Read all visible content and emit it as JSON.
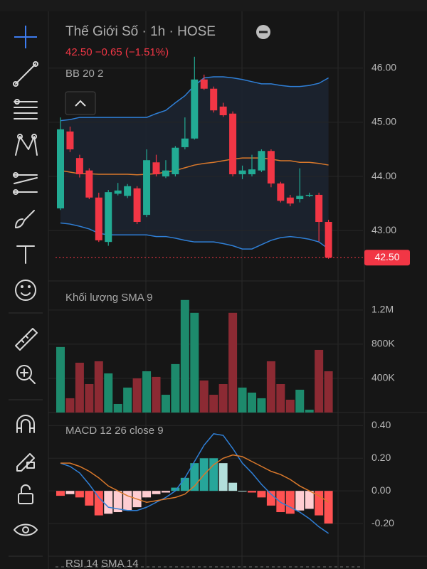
{
  "header": {
    "title": "Thế Giới Số · 1h · HOSE",
    "quote": "42.50  −0.65 (−1.51%)"
  },
  "rsi": {
    "title": "RSI 14 SMA 14"
  },
  "chart_data": [
    {
      "type": "candlestick",
      "title": "BB 20 2",
      "open": [
        43.41,
        44.83,
        44.34,
        44.11,
        43.61,
        42.79,
        43.68,
        43.64,
        43.78,
        43.29,
        44.26,
        44.0,
        44.04,
        44.54,
        44.7,
        45.79,
        45.62,
        45.29,
        45.16,
        44.04,
        44.04,
        44.11,
        44.47,
        43.87,
        43.61,
        43.58,
        43.64,
        43.66,
        43.16
      ],
      "high": [
        45.09,
        44.92,
        44.4,
        44.15,
        43.7,
        43.75,
        43.88,
        43.86,
        43.82,
        44.5,
        44.4,
        44.3,
        44.56,
        45.09,
        46.21,
        45.88,
        45.66,
        45.36,
        45.2,
        44.2,
        44.4,
        44.5,
        44.5,
        43.9,
        43.66,
        44.15,
        43.7,
        43.7,
        43.2
      ],
      "low": [
        43.38,
        44.45,
        43.98,
        43.58,
        42.79,
        42.72,
        43.65,
        43.6,
        43.12,
        43.25,
        44.0,
        43.97,
        44.0,
        44.5,
        44.68,
        45.6,
        45.18,
        45.1,
        44.0,
        43.95,
        44.0,
        44.08,
        43.8,
        43.52,
        43.45,
        43.52,
        43.62,
        42.8,
        42.48
      ],
      "close": [
        44.87,
        44.5,
        44.04,
        43.61,
        42.82,
        43.71,
        43.74,
        43.82,
        43.16,
        44.3,
        44.04,
        44.11,
        44.53,
        44.7,
        45.79,
        45.62,
        45.22,
        45.13,
        44.04,
        44.11,
        44.13,
        44.47,
        43.87,
        43.55,
        43.5,
        43.64,
        43.66,
        43.16,
        42.5
      ],
      "up_color": "#22ab94",
      "down_color": "#f23645",
      "bands": {
        "upper": [
          45.03,
          45.05,
          45.09,
          45.09,
          45.09,
          45.09,
          45.09,
          45.09,
          45.09,
          45.09,
          45.16,
          45.22,
          45.36,
          45.49,
          45.68,
          45.82,
          45.84,
          45.84,
          45.82,
          45.79,
          45.75,
          45.71,
          45.71,
          45.68,
          45.66,
          45.66,
          45.68,
          45.72,
          45.82
        ],
        "basis": [
          44.11,
          44.08,
          44.05,
          44.05,
          44.04,
          44.04,
          44.04,
          44.04,
          44.03,
          44.04,
          44.05,
          44.08,
          44.11,
          44.16,
          44.21,
          44.24,
          44.26,
          44.29,
          44.32,
          44.34,
          44.34,
          44.34,
          44.32,
          44.29,
          44.29,
          44.26,
          44.26,
          44.24,
          44.21
        ],
        "lower": [
          43.14,
          43.12,
          43.08,
          43.03,
          42.95,
          42.92,
          42.92,
          42.92,
          42.92,
          42.92,
          42.89,
          42.89,
          42.86,
          42.82,
          42.79,
          42.79,
          42.79,
          42.76,
          42.72,
          42.66,
          42.66,
          42.74,
          42.82,
          42.87,
          42.89,
          42.87,
          42.84,
          42.79,
          42.66
        ],
        "color": "#2f7fd6",
        "basis_color": "#d9782b"
      },
      "last_price": {
        "value": 42.5,
        "label": "42.50"
      },
      "ylim": [
        42.07,
        46.47
      ],
      "yticks": [
        {
          "value": 43,
          "label": "43.00"
        },
        {
          "value": 44,
          "label": "44.00"
        },
        {
          "value": 45,
          "label": "45.00"
        },
        {
          "value": 46,
          "label": "46.00"
        }
      ]
    },
    {
      "type": "bar",
      "title": "Khối lượng SMA 9",
      "values": [
        767000,
        167000,
        583000,
        333000,
        600000,
        458000,
        100000,
        292000,
        400000,
        483000,
        417000,
        208000,
        567000,
        1317000,
        1167000,
        375000,
        208000,
        333000,
        1167000,
        292000,
        233000,
        167000,
        600000,
        333000,
        150000,
        267000,
        33000,
        733000,
        483000
      ],
      "up_color": "#1d8a6c",
      "down_color": "#8c2a33",
      "ylim": [
        0,
        1540000
      ],
      "yticks": [
        {
          "value": 400000,
          "label": "400K"
        },
        {
          "value": 800000,
          "label": "800K"
        },
        {
          "value": 1200000,
          "label": "1.2M"
        }
      ]
    },
    {
      "type": "macd",
      "title": "MACD 12 26 close 9",
      "histogram": [
        -0.03,
        -0.02,
        -0.04,
        -0.09,
        -0.15,
        -0.14,
        -0.13,
        -0.12,
        -0.1,
        -0.04,
        -0.02,
        -0.01,
        0.02,
        0.08,
        0.17,
        0.2,
        0.2,
        0.17,
        0.05,
        0.0,
        -0.01,
        -0.04,
        -0.09,
        -0.13,
        -0.14,
        -0.12,
        -0.11,
        -0.15,
        -0.2
      ],
      "macd": [
        0.17,
        0.15,
        0.11,
        0.04,
        -0.04,
        -0.1,
        -0.11,
        -0.12,
        -0.12,
        -0.1,
        -0.07,
        -0.04,
        0.0,
        0.08,
        0.18,
        0.28,
        0.35,
        0.34,
        0.26,
        0.17,
        0.11,
        0.04,
        -0.02,
        -0.07,
        -0.1,
        -0.13,
        -0.17,
        -0.22,
        -0.26
      ],
      "signal": [
        0.17,
        0.17,
        0.15,
        0.12,
        0.08,
        0.03,
        0.0,
        -0.03,
        -0.05,
        -0.07,
        -0.06,
        -0.05,
        -0.04,
        -0.02,
        0.03,
        0.1,
        0.16,
        0.2,
        0.22,
        0.21,
        0.18,
        0.15,
        0.12,
        0.1,
        0.07,
        0.03,
        0.0,
        -0.03,
        -0.07
      ],
      "macd_color": "#2f7fd6",
      "signal_color": "#d9782b",
      "histogram_colors": [
        "#26a69a",
        "#b2dfdb",
        "#ffcdd2",
        "#ff5252"
      ],
      "ylim": [
        -0.4,
        0.48
      ],
      "yticks": [
        {
          "value": -0.2,
          "label": "-0.20"
        },
        {
          "value": 0,
          "label": "0.00"
        },
        {
          "value": 0.2,
          "label": "0.20"
        },
        {
          "value": 0.4,
          "label": "0.40"
        }
      ]
    }
  ]
}
